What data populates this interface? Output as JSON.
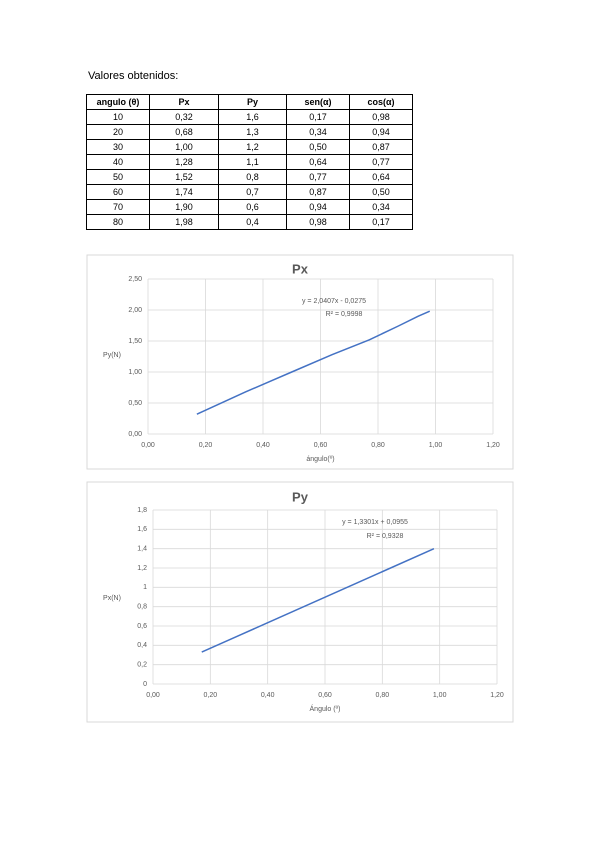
{
  "heading": "Valores obtenidos:",
  "table": {
    "header": [
      "angulo (θ)",
      "Px",
      "Py",
      "sen(α)",
      "cos(α)"
    ],
    "rows": [
      [
        "10",
        "0,32",
        "1,6",
        "0,17",
        "0,98"
      ],
      [
        "20",
        "0,68",
        "1,3",
        "0,34",
        "0,94"
      ],
      [
        "30",
        "1,00",
        "1,2",
        "0,50",
        "0,87"
      ],
      [
        "40",
        "1,28",
        "1,1",
        "0,64",
        "0,77"
      ],
      [
        "50",
        "1,52",
        "0,8",
        "0,77",
        "0,64"
      ],
      [
        "60",
        "1,74",
        "0,7",
        "0,87",
        "0,50"
      ],
      [
        "70",
        "1,90",
        "0,6",
        "0,94",
        "0,34"
      ],
      [
        "80",
        "1,98",
        "0,4",
        "0,98",
        "0,17"
      ]
    ]
  },
  "chart_data": [
    {
      "type": "line",
      "title": "Px",
      "x_label": "ángulo(º)",
      "y_label": "Py(N)",
      "annotations": [
        "y = 2,0407x - 0,0275",
        "R² = 0,9998"
      ],
      "x": [
        0.17,
        0.34,
        0.5,
        0.64,
        0.77,
        0.87,
        0.94,
        0.98
      ],
      "series": [
        {
          "color": "#4472c4",
          "values": [
            0.32,
            0.68,
            1.0,
            1.28,
            1.52,
            1.74,
            1.9,
            1.98
          ]
        }
      ],
      "xlim": [
        0,
        1.2
      ],
      "xticks": [
        {
          "value": 0,
          "label": "0,00"
        },
        {
          "value": 0.2,
          "label": "0,20"
        },
        {
          "value": 0.4,
          "label": "0,40"
        },
        {
          "value": 0.6,
          "label": "0,60"
        },
        {
          "value": 0.8,
          "label": "0,80"
        },
        {
          "value": 1,
          "label": "1,00"
        },
        {
          "value": 1.2,
          "label": "1,20"
        }
      ],
      "ylim": [
        0,
        2.5
      ],
      "yticks": [
        {
          "value": 0,
          "label": "0,00"
        },
        {
          "value": 0.5,
          "label": "0,50"
        },
        {
          "value": 1,
          "label": "1,00"
        },
        {
          "value": 1.5,
          "label": "1,50"
        },
        {
          "value": 2,
          "label": "2,00"
        },
        {
          "value": 2.5,
          "label": "2,50"
        }
      ],
      "grid": true
    },
    {
      "type": "line",
      "title": "Py",
      "x_label": "Ángulo (º)",
      "y_label": "Px(N)",
      "annotations": [
        "y = 1,3301x + 0,0955",
        "R² = 0,9328"
      ],
      "x": [
        0.17,
        0.98
      ],
      "series": [
        {
          "color": "#4472c4",
          "values": [
            0.33,
            1.4
          ]
        }
      ],
      "xlim": [
        0,
        1.2
      ],
      "xticks": [
        {
          "value": 0,
          "label": "0,00"
        },
        {
          "value": 0.2,
          "label": "0,20"
        },
        {
          "value": 0.4,
          "label": "0,40"
        },
        {
          "value": 0.6,
          "label": "0,60"
        },
        {
          "value": 0.8,
          "label": "0,80"
        },
        {
          "value": 1,
          "label": "1,00"
        },
        {
          "value": 1.2,
          "label": "1,20"
        }
      ],
      "ylim": [
        0,
        1.8
      ],
      "yticks": [
        0,
        {
          "value": 0.2,
          "label": "0,2"
        },
        {
          "value": 0.4,
          "label": "0,4"
        },
        {
          "value": 0.6,
          "label": "0,6"
        },
        {
          "value": 0.8,
          "label": "0,8"
        },
        1,
        {
          "value": 1.2,
          "label": "1,2"
        },
        {
          "value": 1.4,
          "label": "1,4"
        },
        {
          "value": 1.6,
          "label": "1,6"
        },
        {
          "value": 1.8,
          "label": "1,8"
        }
      ],
      "grid": true
    }
  ]
}
